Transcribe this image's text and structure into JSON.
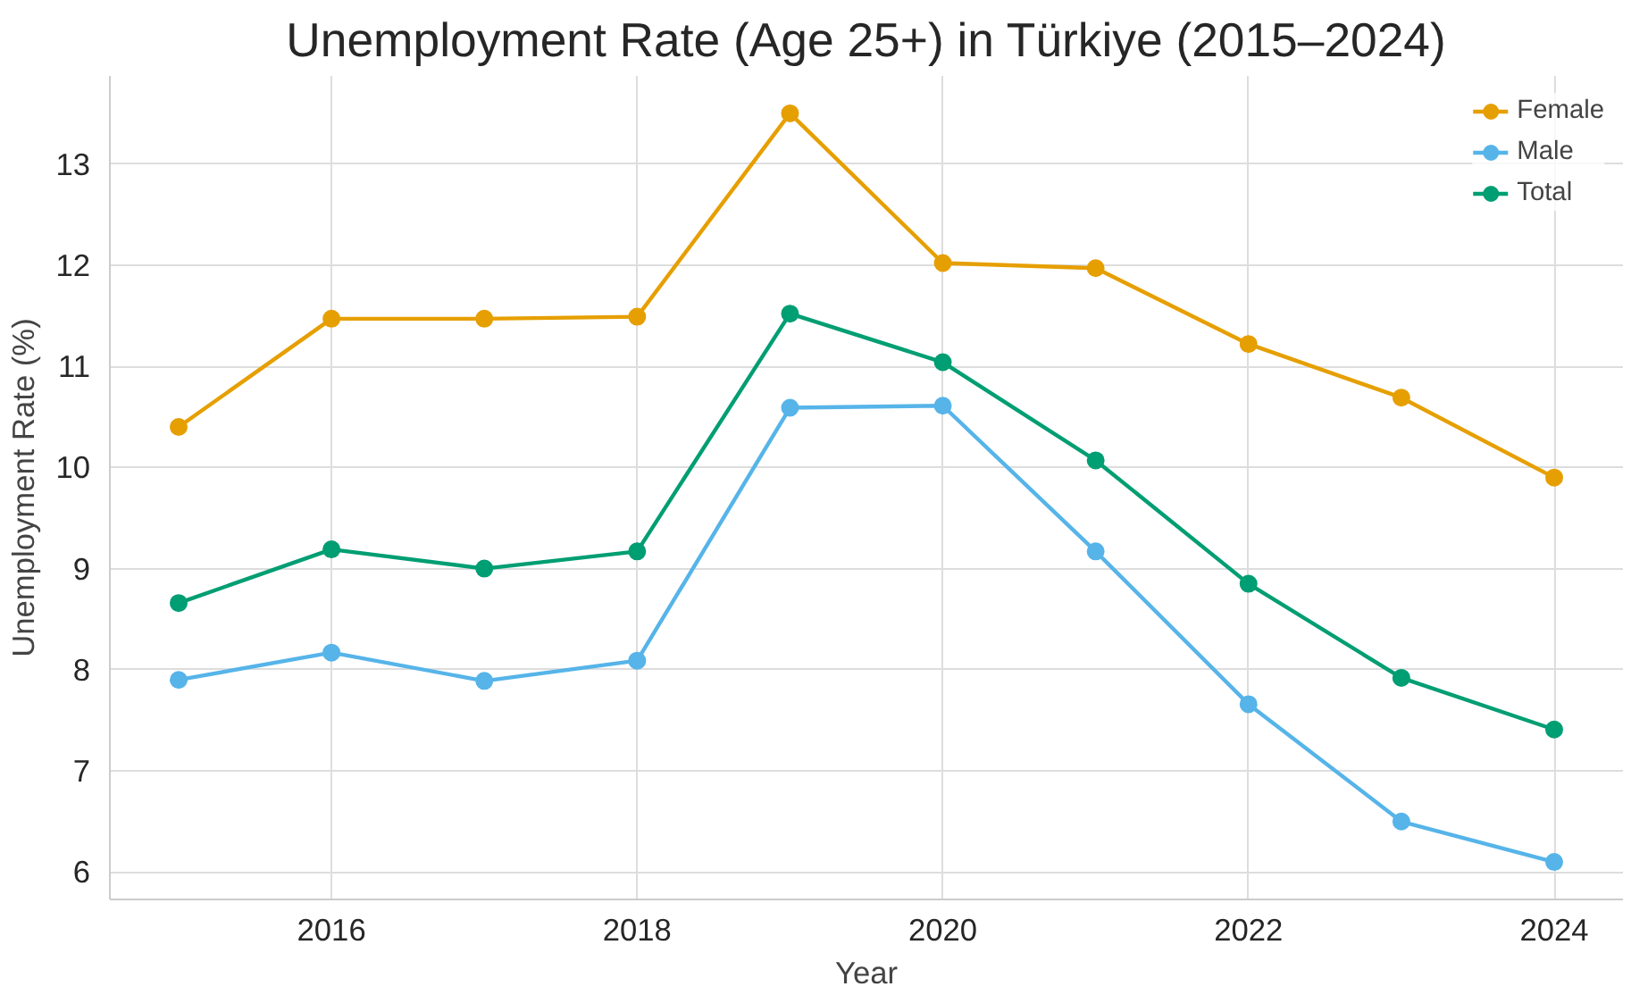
{
  "chart_data": {
    "type": "line",
    "title": "Unemployment Rate (Age 25+) in Türkiye (2015–2024)",
    "xlabel": "Year",
    "ylabel": "Unemployment Rate (%)",
    "x": [
      2015,
      2016,
      2017,
      2018,
      2019,
      2020,
      2021,
      2022,
      2023,
      2024
    ],
    "series": [
      {
        "name": "Female",
        "color": "#e69f00",
        "values": [
          10.4,
          11.47,
          11.47,
          11.49,
          13.5,
          12.02,
          11.97,
          11.22,
          10.69,
          9.9
        ]
      },
      {
        "name": "Male",
        "color": "#56b4e9",
        "values": [
          7.9,
          8.17,
          7.89,
          8.09,
          10.59,
          10.61,
          9.17,
          7.66,
          6.5,
          6.1
        ]
      },
      {
        "name": "Total",
        "color": "#009e73",
        "values": [
          8.66,
          9.19,
          9.0,
          9.17,
          11.52,
          11.04,
          10.07,
          8.85,
          7.92,
          7.41
        ]
      }
    ],
    "xlim": [
      2014.55,
      2024.45
    ],
    "ylim": [
      5.73,
      13.87
    ],
    "xticks": [
      2016,
      2018,
      2020,
      2022,
      2024
    ],
    "yticks": [
      6,
      7,
      8,
      9,
      10,
      11,
      12,
      13
    ],
    "grid": true,
    "legend": "top right",
    "marker": "circle",
    "line_style": "solid"
  }
}
